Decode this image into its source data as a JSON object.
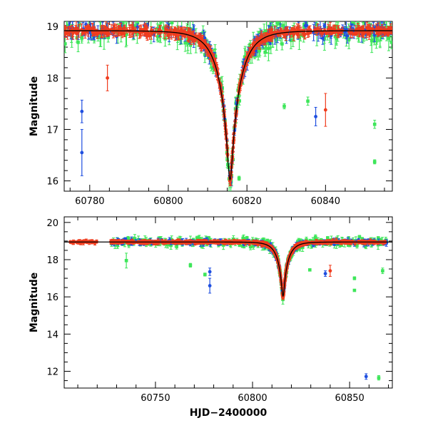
{
  "colors": {
    "blue": "#1f4fe0",
    "red": "#f03c1e",
    "green": "#3ee65a",
    "model": "#000000"
  },
  "chart_data": [
    {
      "type": "scatter",
      "title": "",
      "xlabel": "",
      "ylabel": "Magnitude",
      "xlim": [
        60773.5,
        60857
      ],
      "ylim": [
        19.1,
        15.8
      ],
      "y_inverted": true,
      "xticks": [
        60780,
        60800,
        60820,
        60840
      ],
      "yticks": [
        16,
        17,
        18,
        19
      ],
      "xtick_labels": [
        "60780",
        "60800",
        "60820",
        "60840"
      ],
      "ytick_labels": [
        "16",
        "17",
        "18",
        "19"
      ],
      "grid": false,
      "model": {
        "t0": 60815.7,
        "peak_mag": 16.02,
        "baseline_mag": 18.92
      },
      "series": [
        {
          "color": "#f03c1e",
          "description": "red survey photometry",
          "outliers": [
            {
              "x": 60784.5,
              "y": 18.0,
              "err": 0.25
            },
            {
              "x": 60840.0,
              "y": 17.38,
              "err": 0.32
            }
          ]
        },
        {
          "color": "#1f4fe0",
          "description": "blue survey photometry",
          "outliers": [
            {
              "x": 60778.0,
              "y": 16.55,
              "err": 0.45
            },
            {
              "x": 60778.0,
              "y": 17.35,
              "err": 0.22
            },
            {
              "x": 60837.5,
              "y": 17.25,
              "err": 0.18
            }
          ]
        },
        {
          "color": "#3ee65a",
          "description": "green survey photometry",
          "outliers": [
            {
              "x": 60818.0,
              "y": 16.05,
              "err": 0.04
            },
            {
              "x": 60852.5,
              "y": 16.37,
              "err": 0.04
            },
            {
              "x": 60852.5,
              "y": 17.1,
              "err": 0.08
            },
            {
              "x": 60829.5,
              "y": 17.45,
              "err": 0.05
            },
            {
              "x": 60835.5,
              "y": 17.55,
              "err": 0.08
            }
          ]
        }
      ]
    },
    {
      "type": "scatter",
      "title": "",
      "xlabel": "HJD−2400000",
      "ylabel": "Magnitude",
      "xlim": [
        60703,
        60872
      ],
      "ylim": [
        20.3,
        11.1
      ],
      "y_inverted": true,
      "xticks": [
        60750,
        60800,
        60850
      ],
      "yticks": [
        12,
        14,
        16,
        18,
        20
      ],
      "xtick_labels": [
        "60750",
        "60800",
        "60850"
      ],
      "ytick_labels": [
        "12",
        "14",
        "16",
        "18",
        "20"
      ],
      "grid": false,
      "model": {
        "t0": 60815.7,
        "peak_mag": 16.02,
        "baseline_mag": 18.95
      },
      "series": [
        {
          "color": "#f03c1e",
          "description": "red survey photometry",
          "outliers": [
            {
              "x": 60840.0,
              "y": 17.4,
              "err": 0.3
            }
          ]
        },
        {
          "color": "#1f4fe0",
          "description": "blue survey photometry",
          "outliers": [
            {
              "x": 60858.5,
              "y": 11.72,
              "err": 0.15
            },
            {
              "x": 60778.0,
              "y": 16.6,
              "err": 0.4
            },
            {
              "x": 60778.0,
              "y": 17.35,
              "err": 0.2
            },
            {
              "x": 60837.5,
              "y": 17.25,
              "err": 0.15
            }
          ]
        },
        {
          "color": "#3ee65a",
          "description": "green survey photometry",
          "outliers": [
            {
              "x": 60865.0,
              "y": 11.65,
              "err": 0.12
            },
            {
              "x": 60852.5,
              "y": 16.35,
              "err": 0.05
            },
            {
              "x": 60852.5,
              "y": 17.0,
              "err": 0.08
            },
            {
              "x": 60775.5,
              "y": 17.2,
              "err": 0.08
            },
            {
              "x": 60768.0,
              "y": 17.7,
              "err": 0.1
            },
            {
              "x": 60735.0,
              "y": 17.95,
              "err": 0.4
            },
            {
              "x": 60829.5,
              "y": 17.45,
              "err": 0.05
            },
            {
              "x": 60867.0,
              "y": 17.4,
              "err": 0.15
            }
          ]
        }
      ]
    }
  ]
}
